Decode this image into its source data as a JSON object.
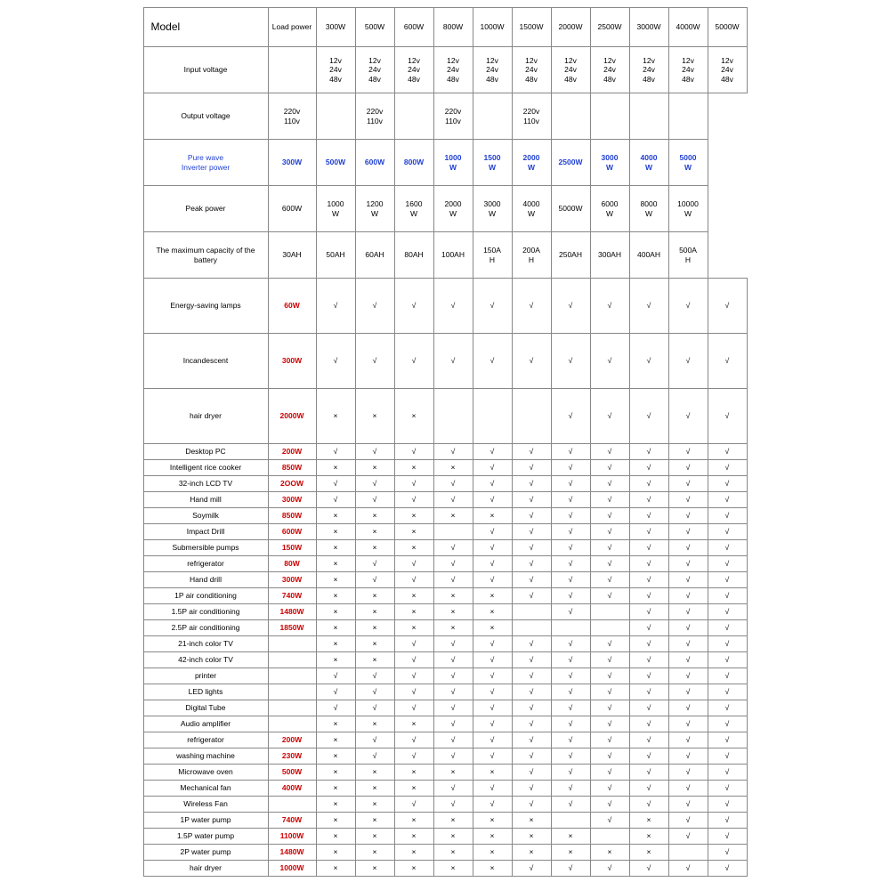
{
  "colors": {
    "text": "#000000",
    "blue": "#1f3fd1",
    "red": "#cc0000",
    "border": "#888888",
    "background": "#ffffff"
  },
  "header": {
    "model": "Model",
    "load_power": "Load power",
    "watt_cols": [
      "300W",
      "500W",
      "600W",
      "800W",
      "1000W",
      "1500W",
      "2000W",
      "2500W",
      "3000W",
      "4000W",
      "5000W"
    ]
  },
  "spec_rows": [
    {
      "label": "Input voltage",
      "cells": [
        "12v\n24v\n48v",
        "12v\n24v\n48v",
        "12v\n24v\n48v",
        "12v\n24v\n48v",
        "12v\n24v\n48v",
        "12v\n24v\n48v",
        "12v\n24v\n48v",
        "12v\n24v\n48v",
        "12v\n24v\n48v",
        "12v\n24v\n48v",
        "12v\n24v\n48v"
      ],
      "row_class": "tall"
    },
    {
      "label": "Output voltage",
      "cells": [
        "220v\n110v",
        "",
        "220v\n110v",
        "",
        "220v\n110v",
        "",
        "220v\n110v",
        "",
        "",
        "",
        ""
      ],
      "row_class": "tall"
    },
    {
      "label": "Pure wave\nInverter power",
      "label_class": "blue",
      "cells": [
        "300W",
        "500W",
        "600W",
        "800W",
        "1000\nW",
        "1500\nW",
        "2000\nW",
        "2500W",
        "3000\nW",
        "4000\nW",
        "5000\nW"
      ],
      "cell_class": "blue",
      "row_class": "tall"
    },
    {
      "label": "Peak power",
      "cells": [
        "600W",
        "1000\nW",
        "1200\nW",
        "1600\nW",
        "2000\nW",
        "3000\nW",
        "4000\nW",
        "5000W",
        "6000\nW",
        "8000\nW",
        "10000\nW"
      ],
      "row_class": "tall"
    },
    {
      "label": "The maximum capacity of the\nbattery",
      "cells": [
        "30AH",
        "50AH",
        "60AH",
        "80AH",
        "100AH",
        "150A\nH",
        "200A\nH",
        "250AH",
        "300AH",
        "400AH",
        "500A\nH"
      ],
      "row_class": "tall"
    }
  ],
  "device_rows": [
    {
      "label": "Energy-saving lamps",
      "load": "60W",
      "cells": [
        "√",
        "√",
        "√",
        "√",
        "√",
        "√",
        "√",
        "√",
        "√",
        "√",
        "√"
      ],
      "row_class": "xtall"
    },
    {
      "label": "Incandescent",
      "load": "300W",
      "cells": [
        "√",
        "√",
        "√",
        "√",
        "√",
        "√",
        "√",
        "√",
        "√",
        "√",
        "√"
      ],
      "row_class": "xtall"
    },
    {
      "label": "hair dryer",
      "load": "2000W",
      "cells": [
        "×",
        "×",
        "×",
        "",
        "",
        "",
        "√",
        "√",
        "√",
        "√",
        "√"
      ],
      "row_class": "xtall"
    },
    {
      "label": "Desktop PC",
      "load": "200W",
      "cells": [
        "√",
        "√",
        "√",
        "√",
        "√",
        "√",
        "√",
        "√",
        "√",
        "√",
        "√"
      ]
    },
    {
      "label": "Intelligent rice cooker",
      "load": "850W",
      "cells": [
        "×",
        "×",
        "×",
        "×",
        "√",
        "√",
        "√",
        "√",
        "√",
        "√",
        "√"
      ]
    },
    {
      "label": "32-inch LCD TV",
      "load": "2OOW",
      "cells": [
        "√",
        "√",
        "√",
        "√",
        "√",
        "√",
        "√",
        "√",
        "√",
        "√",
        "√"
      ]
    },
    {
      "label": "Hand mill",
      "load": "300W",
      "cells": [
        "√",
        "√",
        "√",
        "√",
        "√",
        "√",
        "√",
        "√",
        "√",
        "√",
        "√"
      ]
    },
    {
      "label": "Soymilk",
      "load": "850W",
      "cells": [
        "×",
        "×",
        "×",
        "×",
        "×",
        "√",
        "√",
        "√",
        "√",
        "√",
        "√"
      ]
    },
    {
      "label": "Impact Drill",
      "load": "600W",
      "cells": [
        "×",
        "×",
        "×",
        "",
        "√",
        "√",
        "√",
        "√",
        "√",
        "√",
        "√"
      ]
    },
    {
      "label": "Submersible pumps",
      "load": "150W",
      "cells": [
        "×",
        "×",
        "×",
        "√",
        "√",
        "√",
        "√",
        "√",
        "√",
        "√",
        "√"
      ]
    },
    {
      "label": "refrigerator",
      "load": "80W",
      "cells": [
        "×",
        "√",
        "√",
        "√",
        "√",
        "√",
        "√",
        "√",
        "√",
        "√",
        "√"
      ]
    },
    {
      "label": "Hand drill",
      "load": "300W",
      "cells": [
        "×",
        "√",
        "√",
        "√",
        "√",
        "√",
        "√",
        "√",
        "√",
        "√",
        "√"
      ]
    },
    {
      "label": "1P air conditioning",
      "load": "740W",
      "cells": [
        "×",
        "×",
        "×",
        "×",
        "×",
        "√",
        "√",
        "√",
        "√",
        "√",
        "√"
      ]
    },
    {
      "label": "1.5P air conditioning",
      "load": "1480W",
      "cells": [
        "×",
        "×",
        "×",
        "×",
        "×",
        "",
        "√",
        "",
        "√",
        "√",
        "√"
      ]
    },
    {
      "label": "2.5P air conditioning",
      "load": "1850W",
      "cells": [
        "×",
        "×",
        "×",
        "×",
        "×",
        "",
        "",
        "",
        "√",
        "√",
        "√"
      ]
    },
    {
      "label": "21-inch color TV",
      "load": "",
      "cells": [
        "×",
        "×",
        "√",
        "√",
        "√",
        "√",
        "√",
        "√",
        "√",
        "√",
        "√"
      ]
    },
    {
      "label": "42-inch color TV",
      "load": "",
      "cells": [
        "×",
        "×",
        "√",
        "√",
        "√",
        "√",
        "√",
        "√",
        "√",
        "√",
        "√"
      ]
    },
    {
      "label": "printer",
      "load": "",
      "cells": [
        "√",
        "√",
        "√",
        "√",
        "√",
        "√",
        "√",
        "√",
        "√",
        "√",
        "√"
      ]
    },
    {
      "label": "LED lights",
      "load": "",
      "cells": [
        "√",
        "√",
        "√",
        "√",
        "√",
        "√",
        "√",
        "√",
        "√",
        "√",
        "√"
      ]
    },
    {
      "label": "Digital Tube",
      "load": "",
      "cells": [
        "√",
        "√",
        "√",
        "√",
        "√",
        "√",
        "√",
        "√",
        "√",
        "√",
        "√"
      ]
    },
    {
      "label": "Audio amplifier",
      "load": "",
      "cells": [
        "×",
        "×",
        "×",
        "√",
        "√",
        "√",
        "√",
        "√",
        "√",
        "√",
        "√"
      ]
    },
    {
      "label": "refrigerator",
      "load": "200W",
      "cells": [
        "×",
        "√",
        "√",
        "√",
        "√",
        "√",
        "√",
        "√",
        "√",
        "√",
        "√"
      ]
    },
    {
      "label": "washing machine",
      "load": "230W",
      "cells": [
        "×",
        "√",
        "√",
        "√",
        "√",
        "√",
        "√",
        "√",
        "√",
        "√",
        "√"
      ]
    },
    {
      "label": "Microwave oven",
      "load": "500W",
      "cells": [
        "×",
        "×",
        "×",
        "×",
        "×",
        "√",
        "√",
        "√",
        "√",
        "√",
        "√"
      ]
    },
    {
      "label": "Mechanical fan",
      "load": "400W",
      "cells": [
        "×",
        "×",
        "×",
        "√",
        "√",
        "√",
        "√",
        "√",
        "√",
        "√",
        "√"
      ]
    },
    {
      "label": "Wireless Fan",
      "load": "",
      "cells": [
        "×",
        "×",
        "√",
        "√",
        "√",
        "√",
        "√",
        "√",
        "√",
        "√",
        "√"
      ]
    },
    {
      "label": "1P water pump",
      "load": "740W",
      "cells": [
        "×",
        "×",
        "×",
        "×",
        "×",
        "×",
        "",
        "√",
        "×",
        "√",
        "√"
      ]
    },
    {
      "label": "1.5P water pump",
      "load": "1100W",
      "cells": [
        "×",
        "×",
        "×",
        "×",
        "×",
        "×",
        "×",
        "",
        "×",
        "√",
        "√"
      ]
    },
    {
      "label": "2P water pump",
      "load": "1480W",
      "cells": [
        "×",
        "×",
        "×",
        "×",
        "×",
        "×",
        "×",
        "×",
        "×",
        "",
        "√"
      ]
    },
    {
      "label": "hair dryer",
      "load": "1000W",
      "cells": [
        "×",
        "×",
        "×",
        "×",
        "×",
        "√",
        "√",
        "√",
        "√",
        "√",
        "√"
      ]
    }
  ]
}
